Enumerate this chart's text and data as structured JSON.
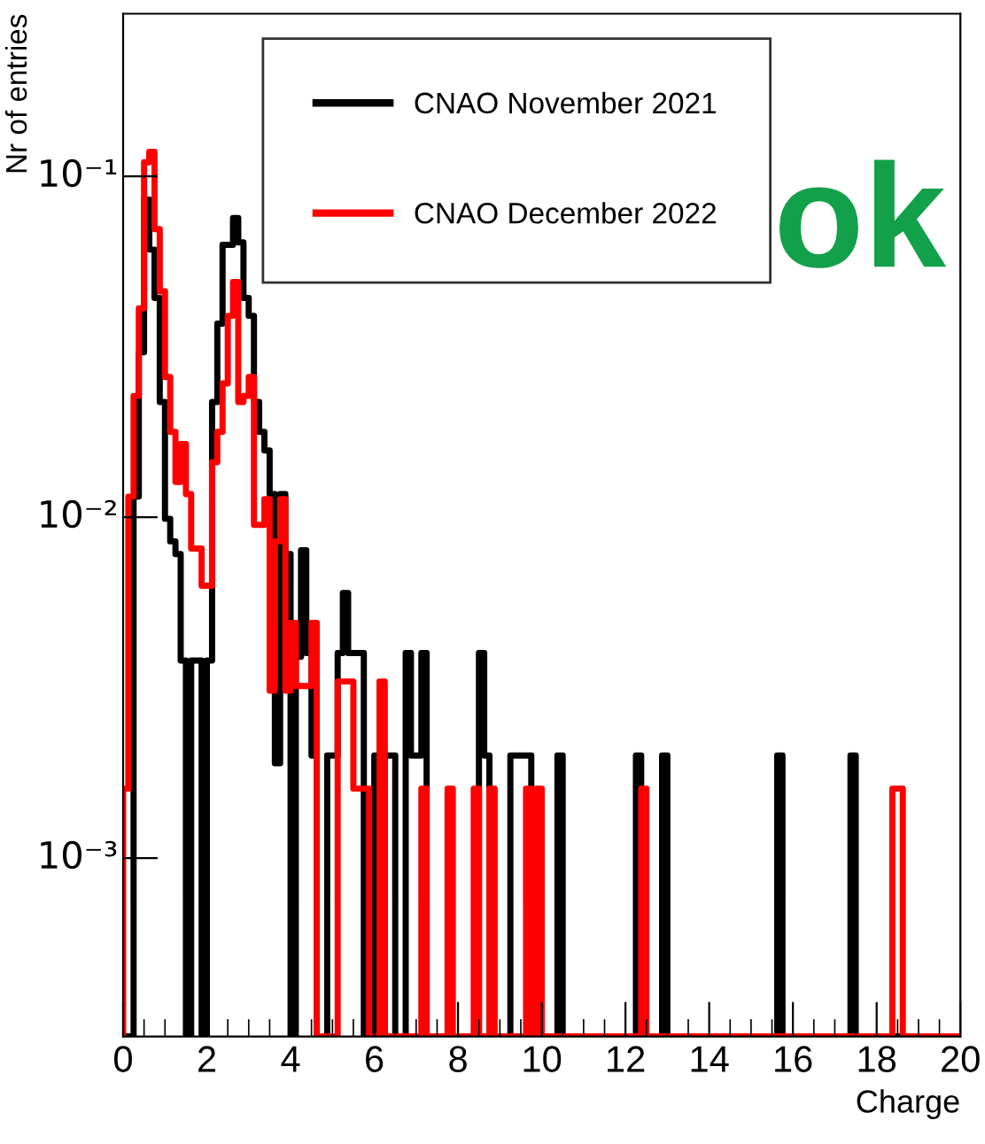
{
  "chart_data": {
    "type": "histogram",
    "xlabel": "Charge",
    "ylabel": "Nr of entries",
    "annotations": [
      "ok"
    ],
    "bins": [
      0,
      0.125,
      0.25,
      0.375,
      0.5,
      0.625,
      0.75,
      0.875,
      1,
      1.125,
      1.25,
      1.375,
      1.5,
      1.625,
      1.75,
      1.875,
      2,
      2.125,
      2.25,
      2.375,
      2.5,
      2.625,
      2.75,
      2.875,
      3,
      3.125,
      3.25,
      3.375,
      3.5,
      3.625,
      3.75,
      3.875,
      4,
      4.125,
      4.25,
      4.375,
      4.5,
      4.625,
      4.75,
      4.875,
      5,
      5.125,
      5.25,
      5.375,
      5.5,
      5.625,
      5.75,
      5.875,
      6,
      6.125,
      6.25,
      6.375,
      6.5,
      6.625,
      6.75,
      6.875,
      7,
      7.125,
      7.25,
      7.375,
      7.5,
      7.625,
      7.75,
      7.875,
      8,
      8.125,
      8.25,
      8.375,
      8.5,
      8.625,
      8.75,
      8.875,
      9,
      9.125,
      9.25,
      9.375,
      9.5,
      9.625,
      9.75,
      9.875,
      10,
      10.125,
      10.25,
      10.375,
      10.5,
      10.625,
      10.75,
      10.875,
      11,
      11.125,
      11.25,
      11.375,
      11.5,
      11.625,
      11.75,
      11.875,
      12,
      12.125,
      12.25,
      12.375,
      12.5,
      12.625,
      12.75,
      12.875,
      13,
      13.125,
      13.25,
      13.375,
      13.5,
      13.625,
      13.75,
      13.875,
      14,
      14.125,
      14.25,
      14.375,
      14.5,
      14.625,
      14.75,
      14.875,
      15,
      15.125,
      15.25,
      15.375,
      15.5,
      15.625,
      15.75,
      15.875,
      16,
      16.125,
      16.25,
      16.375,
      16.5,
      16.625,
      16.75,
      16.875,
      17,
      17.125,
      17.25,
      17.375,
      17.5,
      17.625,
      17.75,
      17.875,
      18,
      18.125,
      18.25,
      18.375,
      18.5,
      18.625,
      18.75,
      18.875,
      19,
      19.125,
      19.25,
      19.375,
      19.5,
      19.625,
      19.75,
      19.875,
      20
    ],
    "series": [
      {
        "name": "CNAO November 2021",
        "color": "#000000",
        "values": [
          null,
          null,
          0.0115,
          0.0305,
          0.0855,
          0.061,
          0.044,
          0.0218,
          0.0099,
          0.0085,
          0.0078,
          0.0038,
          null,
          0.0038,
          0.0038,
          null,
          0.0038,
          0.0218,
          0.037,
          0.063,
          0.063,
          0.0755,
          0.064,
          0.044,
          0.039,
          0.0218,
          0.0178,
          0.0157,
          0.0117,
          0.0019,
          0.0117,
          0.0078,
          null,
          0.0039,
          0.008,
          0.004,
          0.002,
          null,
          null,
          0.002,
          0.002,
          0.004,
          0.006,
          0.004,
          0.004,
          0.004,
          null,
          null,
          0.002,
          null,
          0.002,
          0.002,
          null,
          null,
          0.004,
          0.002,
          0.002,
          0.004,
          null,
          null,
          null,
          null,
          null,
          null,
          null,
          null,
          null,
          null,
          0.004,
          0.002,
          null,
          null,
          null,
          null,
          0.002,
          0.002,
          0.002,
          0.002,
          null,
          null,
          null,
          null,
          null,
          0.002,
          null,
          null,
          null,
          null,
          null,
          null,
          null,
          null,
          null,
          null,
          null,
          null,
          null,
          null,
          0.002,
          null,
          null,
          null,
          null,
          0.002,
          null,
          null,
          null,
          null,
          null,
          null,
          null,
          null,
          null,
          null,
          null,
          null,
          null,
          null,
          null,
          null,
          null,
          null,
          null,
          null,
          null,
          0.002,
          null,
          null,
          null,
          null,
          null,
          null,
          null,
          null,
          null,
          null,
          null,
          null,
          null,
          0.002,
          null,
          null,
          null,
          null,
          null,
          null,
          null,
          null,
          null,
          null,
          null,
          null,
          null,
          null,
          null,
          null,
          null,
          null,
          null,
          null
        ]
      },
      {
        "name": "CNAO December 2022",
        "color": "#ff0000",
        "values": [
          0.0016,
          0.0115,
          0.0227,
          0.041,
          0.11,
          0.118,
          0.07,
          0.046,
          0.0258,
          0.0178,
          0.0127,
          0.0164,
          0.0117,
          0.0081,
          0.0081,
          0.0063,
          0.0063,
          0.0145,
          0.0178,
          0.0247,
          0.039,
          0.049,
          0.0218,
          0.0227,
          0.0258,
          0.0095,
          0.0095,
          0.0113,
          0.0031,
          0.0085,
          0.0113,
          0.0031,
          0.0049,
          0.0032,
          0.0032,
          0.0032,
          0.0049,
          null,
          null,
          null,
          null,
          0.0033,
          0.0033,
          0.0033,
          0.0016,
          0.0016,
          0.0016,
          null,
          null,
          0.0033,
          null,
          null,
          null,
          null,
          null,
          null,
          null,
          0.0016,
          null,
          null,
          null,
          null,
          0.0016,
          null,
          null,
          null,
          null,
          0.0016,
          null,
          null,
          0.0016,
          null,
          null,
          null,
          null,
          null,
          null,
          0.0016,
          null,
          0.0016,
          null,
          null,
          null,
          null,
          null,
          null,
          null,
          null,
          null,
          null,
          null,
          null,
          null,
          null,
          null,
          null,
          null,
          null,
          null,
          0.0016,
          null,
          null,
          null,
          null,
          null,
          null,
          null,
          null,
          null,
          null,
          null,
          null,
          null,
          null,
          null,
          null,
          null,
          null,
          null,
          null,
          null,
          null,
          null,
          null,
          null,
          null,
          null,
          null,
          null,
          null,
          null,
          null,
          null,
          null,
          null,
          null,
          null,
          null,
          null,
          null,
          null,
          null,
          null,
          null,
          null,
          null,
          null,
          0.0016,
          0.0016,
          null,
          null,
          null,
          null,
          null,
          null,
          null,
          null,
          null,
          null,
          null
        ]
      }
    ],
    "xlim": [
      0,
      20
    ],
    "xticks": [
      0,
      2,
      4,
      6,
      8,
      10,
      12,
      14,
      16,
      18,
      20
    ],
    "log": "y",
    "ylim": [
      0.0003,
      0.3
    ],
    "yticks": [
      {
        "value": 0.001,
        "label": "10⁻³"
      },
      {
        "value": 0.01,
        "label": "10⁻²"
      },
      {
        "value": 0.1,
        "label": "10⁻¹"
      }
    ],
    "legend": "top center",
    "grid": false
  }
}
